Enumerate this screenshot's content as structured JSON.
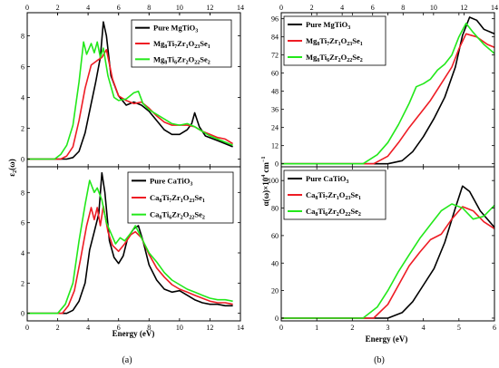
{
  "chart_data": [
    {
      "id": "a_top",
      "type": "line",
      "panel": "(a)",
      "xlabel": "",
      "ylabel": "ε2(ω)",
      "x_ticks": [
        0,
        2,
        4,
        6,
        8,
        10,
        12,
        14
      ],
      "y_ticks": [
        0,
        2,
        4,
        6,
        8
      ],
      "xlim": [
        0,
        14
      ],
      "ylim": [
        -0.5,
        9.5
      ],
      "top_axis_ticks": [
        0,
        2,
        4,
        6,
        8,
        10,
        12,
        14
      ],
      "legend_position": "top-right",
      "series": [
        {
          "name": "Pure MgTiO3",
          "legend_parts": [
            [
              "Pure MgTiO",
              ""
            ],
            [
              "3",
              "sub"
            ]
          ],
          "color": "#000000",
          "x": [
            0,
            2.6,
            3.0,
            3.4,
            3.8,
            4.2,
            4.5,
            4.8,
            5.0,
            5.2,
            5.5,
            6.0,
            6.5,
            7.0,
            7.5,
            8.0,
            8.5,
            9.0,
            9.5,
            10.0,
            10.5,
            10.8,
            11.0,
            11.3,
            11.7,
            12.5,
            13.5
          ],
          "y": [
            0,
            0,
            0.1,
            0.5,
            1.7,
            3.6,
            5.0,
            6.6,
            8.9,
            8.0,
            5.4,
            4.1,
            3.5,
            3.7,
            3.5,
            3.1,
            2.5,
            1.9,
            1.6,
            1.6,
            1.9,
            2.3,
            3.0,
            2.1,
            1.5,
            1.2,
            0.8
          ]
        },
        {
          "name": "Mg8Ti7Zr1O23Se1",
          "legend_parts": [
            [
              "Mg",
              ""
            ],
            [
              "8",
              "sub"
            ],
            [
              "Ti",
              ""
            ],
            [
              "7",
              "sub"
            ],
            [
              "Zr",
              ""
            ],
            [
              "1",
              "sub"
            ],
            [
              "O",
              ""
            ],
            [
              "23",
              "sub"
            ],
            [
              "Se",
              ""
            ],
            [
              "1",
              "sub"
            ]
          ],
          "color": "#ee1c24",
          "x": [
            0,
            2.2,
            2.6,
            3.0,
            3.4,
            3.8,
            4.2,
            4.6,
            4.9,
            5.2,
            5.6,
            6.0,
            6.5,
            7.0,
            7.5,
            8.0,
            8.5,
            9.0,
            9.5,
            10.0,
            10.5,
            11.0,
            11.5,
            12.0,
            12.5,
            13.0,
            13.5
          ],
          "y": [
            0,
            0,
            0.2,
            0.8,
            2.5,
            4.6,
            6.1,
            6.4,
            6.6,
            7.1,
            5.2,
            4.1,
            3.8,
            3.6,
            3.7,
            3.3,
            2.8,
            2.4,
            2.2,
            2.2,
            2.2,
            2.1,
            1.8,
            1.6,
            1.4,
            1.3,
            1.0
          ]
        },
        {
          "name": "Mg8Ti6Zr2O22Se2",
          "legend_parts": [
            [
              "Mg",
              ""
            ],
            [
              "8",
              "sub"
            ],
            [
              "Ti",
              ""
            ],
            [
              "6",
              "sub"
            ],
            [
              "Zr",
              ""
            ],
            [
              "2",
              "sub"
            ],
            [
              "O",
              ""
            ],
            [
              "22",
              "sub"
            ],
            [
              "Se",
              ""
            ],
            [
              "2",
              "sub"
            ]
          ],
          "color": "#22e81a",
          "x": [
            0,
            1.8,
            2.2,
            2.6,
            3.0,
            3.4,
            3.7,
            3.9,
            4.2,
            4.4,
            4.6,
            4.8,
            5.0,
            5.3,
            5.7,
            6.0,
            6.5,
            7.0,
            7.3,
            7.6,
            8.0,
            8.5,
            9.0,
            9.5,
            10.0,
            10.5,
            11.0,
            11.5,
            12.0,
            12.5,
            13.0,
            13.5
          ],
          "y": [
            0,
            0,
            0.3,
            0.9,
            2.2,
            5.0,
            7.6,
            6.8,
            7.5,
            6.9,
            7.6,
            6.6,
            7.2,
            5.4,
            4.0,
            3.8,
            3.9,
            4.3,
            4.4,
            3.6,
            3.2,
            2.9,
            2.6,
            2.3,
            2.2,
            2.3,
            2.1,
            1.8,
            1.5,
            1.3,
            1.1,
            0.9
          ]
        }
      ]
    },
    {
      "id": "a_bottom",
      "type": "line",
      "panel": "(a)",
      "xlabel": "Energy (eV)",
      "ylabel": "",
      "x_ticks": [
        0,
        2,
        4,
        6,
        8,
        10,
        12,
        14
      ],
      "y_ticks": [
        0,
        2,
        4,
        6,
        8
      ],
      "xlim": [
        0,
        14
      ],
      "ylim": [
        -0.5,
        9.7
      ],
      "legend_position": "top-right",
      "series": [
        {
          "name": "Pure CaTiO3",
          "legend_parts": [
            [
              "Pure CaTiO",
              ""
            ],
            [
              "3",
              "sub"
            ]
          ],
          "color": "#000000",
          "x": [
            0,
            2.6,
            3.0,
            3.4,
            3.8,
            4.1,
            4.4,
            4.7,
            4.9,
            5.1,
            5.4,
            5.7,
            6.0,
            6.3,
            6.6,
            7.0,
            7.3,
            7.6,
            8.0,
            8.5,
            9.0,
            9.5,
            10.0,
            10.5,
            11.0,
            11.5,
            12.0,
            12.5,
            13.0,
            13.5
          ],
          "y": [
            0,
            0,
            0.2,
            0.8,
            2.0,
            4.2,
            5.4,
            6.6,
            9.3,
            8.0,
            4.8,
            3.7,
            3.3,
            3.8,
            5.0,
            5.6,
            5.8,
            4.8,
            3.2,
            2.2,
            1.6,
            1.4,
            1.5,
            1.2,
            0.9,
            0.7,
            0.6,
            0.6,
            0.5,
            0.5
          ]
        },
        {
          "name": "Ca8Ti7Zr1O23Se1",
          "legend_parts": [
            [
              "Ca",
              ""
            ],
            [
              "8",
              "sub"
            ],
            [
              "Ti",
              ""
            ],
            [
              "7",
              "sub"
            ],
            [
              "Zr",
              ""
            ],
            [
              "1",
              "sub"
            ],
            [
              "O",
              ""
            ],
            [
              "23",
              "sub"
            ],
            [
              "Se",
              ""
            ],
            [
              "1",
              "sub"
            ]
          ],
          "color": "#ee1c24",
          "x": [
            0,
            2.3,
            2.7,
            3.1,
            3.5,
            3.9,
            4.2,
            4.4,
            4.6,
            4.8,
            5.0,
            5.3,
            5.6,
            6.0,
            6.4,
            6.8,
            7.1,
            7.5,
            8.0,
            8.5,
            9.0,
            9.5,
            10.0,
            10.5,
            11.0,
            11.5,
            12.0,
            12.5,
            13.0,
            13.5
          ],
          "y": [
            0,
            0,
            0.5,
            1.5,
            3.6,
            5.8,
            7.0,
            6.2,
            7.0,
            5.8,
            7.1,
            5.4,
            4.5,
            4.1,
            4.6,
            5.2,
            5.4,
            5.0,
            3.9,
            3.0,
            2.4,
            1.9,
            1.6,
            1.4,
            1.2,
            1.0,
            0.8,
            0.7,
            0.7,
            0.6
          ]
        },
        {
          "name": "Ca8Ti6Zr2O22Se2",
          "legend_parts": [
            [
              "Ca",
              ""
            ],
            [
              "8",
              "sub"
            ],
            [
              "Ti",
              ""
            ],
            [
              "6",
              "sub"
            ],
            [
              "Zr",
              ""
            ],
            [
              "2",
              "sub"
            ],
            [
              "O",
              ""
            ],
            [
              "22",
              "sub"
            ],
            [
              "Se",
              ""
            ],
            [
              "2",
              "sub"
            ]
          ],
          "color": "#22e81a",
          "x": [
            0,
            2.0,
            2.5,
            3.0,
            3.4,
            3.8,
            4.1,
            4.4,
            4.6,
            4.9,
            5.2,
            5.5,
            5.8,
            6.1,
            6.4,
            6.8,
            7.1,
            7.5,
            8.0,
            8.5,
            9.0,
            9.5,
            10.0,
            10.5,
            11.0,
            11.5,
            12.0,
            12.5,
            13.0,
            13.5
          ],
          "y": [
            0,
            0,
            0.6,
            2.0,
            4.8,
            7.2,
            8.8,
            8.0,
            8.3,
            7.5,
            6.0,
            5.3,
            4.6,
            5.0,
            4.8,
            5.3,
            5.8,
            5.0,
            4.0,
            3.4,
            2.7,
            2.2,
            1.9,
            1.6,
            1.4,
            1.2,
            1.0,
            0.9,
            0.9,
            0.8
          ]
        }
      ]
    },
    {
      "id": "b_top",
      "type": "line",
      "panel": "(b)",
      "xlabel": "",
      "ylabel": "α(ω)×10^4 cm^−1",
      "x_ticks": [
        0,
        1,
        2,
        3,
        4,
        5,
        6
      ],
      "y_ticks": [
        0,
        12,
        24,
        36,
        48,
        60,
        72,
        84,
        96
      ],
      "xlim": [
        0,
        6
      ],
      "ylim": [
        -2,
        100
      ],
      "top_axis_ticks": [
        0,
        2,
        4,
        6,
        8,
        10,
        12,
        14
      ],
      "legend_position": "top-left",
      "series": [
        {
          "name": "Pure MgTiO3",
          "legend_parts": [
            [
              "Pure MgTiO",
              ""
            ],
            [
              "3",
              "sub"
            ]
          ],
          "color": "#000000",
          "x": [
            0,
            3.0,
            3.4,
            3.7,
            4.0,
            4.3,
            4.6,
            4.9,
            5.1,
            5.3,
            5.5,
            5.7,
            6.0
          ],
          "y": [
            0,
            0,
            2,
            8,
            18,
            30,
            44,
            64,
            85,
            97,
            95,
            89,
            86
          ]
        },
        {
          "name": "Mg8Ti7Zr1O23Se1",
          "legend_parts": [
            [
              "Mg",
              ""
            ],
            [
              "8",
              "sub"
            ],
            [
              "Ti",
              ""
            ],
            [
              "7",
              "sub"
            ],
            [
              "Zr",
              ""
            ],
            [
              "1",
              "sub"
            ],
            [
              "O",
              ""
            ],
            [
              "23",
              "sub"
            ],
            [
              "Se",
              ""
            ],
            [
              "1",
              "sub"
            ]
          ],
          "color": "#ee1c24",
          "x": [
            0,
            2.6,
            3.0,
            3.3,
            3.6,
            3.9,
            4.2,
            4.5,
            4.8,
            5.0,
            5.2,
            5.5,
            5.8,
            6.0
          ],
          "y": [
            0,
            0,
            5,
            14,
            24,
            33,
            42,
            53,
            64,
            76,
            86,
            84,
            79,
            77
          ]
        },
        {
          "name": "Mg8Ti6Zr2O22Se2",
          "legend_parts": [
            [
              "Mg",
              ""
            ],
            [
              "8",
              "sub"
            ],
            [
              "Ti",
              ""
            ],
            [
              "6",
              "sub"
            ],
            [
              "Zr",
              ""
            ],
            [
              "2",
              "sub"
            ],
            [
              "O",
              ""
            ],
            [
              "22",
              "sub"
            ],
            [
              "Se",
              ""
            ],
            [
              "2",
              "sub"
            ]
          ],
          "color": "#22e81a",
          "x": [
            0,
            2.3,
            2.7,
            3.0,
            3.3,
            3.6,
            3.8,
            4.0,
            4.2,
            4.4,
            4.6,
            4.8,
            5.0,
            5.2,
            5.4,
            5.7,
            6.0
          ],
          "y": [
            0,
            0,
            6,
            14,
            26,
            40,
            51,
            53,
            56,
            62,
            66,
            72,
            84,
            93,
            87,
            79,
            73
          ]
        }
      ]
    },
    {
      "id": "b_bottom",
      "type": "line",
      "panel": "(b)",
      "xlabel": "Energy (eV)",
      "ylabel": "",
      "x_ticks": [
        0,
        1,
        2,
        3,
        4,
        5,
        6
      ],
      "y_ticks": [
        0,
        20,
        40,
        60,
        80,
        100
      ],
      "xlim": [
        0,
        6
      ],
      "ylim": [
        -2,
        110
      ],
      "legend_position": "top-left",
      "series": [
        {
          "name": "Pure CaTiO3",
          "legend_parts": [
            [
              "Pure CaTiO",
              ""
            ],
            [
              "3",
              "sub"
            ]
          ],
          "color": "#000000",
          "x": [
            0,
            3.0,
            3.4,
            3.7,
            4.0,
            4.3,
            4.6,
            4.9,
            5.1,
            5.3,
            5.6,
            6.0
          ],
          "y": [
            0,
            0,
            4,
            12,
            24,
            36,
            55,
            80,
            96,
            92,
            78,
            66
          ]
        },
        {
          "name": "Ca8Ti7Zr1O23Se1",
          "legend_parts": [
            [
              "Ca",
              ""
            ],
            [
              "8",
              "sub"
            ],
            [
              "Ti",
              ""
            ],
            [
              "7",
              "sub"
            ],
            [
              "Zr",
              ""
            ],
            [
              "1",
              "sub"
            ],
            [
              "O",
              ""
            ],
            [
              "23",
              "sub"
            ],
            [
              "Se",
              ""
            ],
            [
              "1",
              "sub"
            ]
          ],
          "color": "#ee1c24",
          "x": [
            0,
            2.6,
            3.0,
            3.3,
            3.6,
            3.9,
            4.2,
            4.5,
            4.8,
            5.1,
            5.4,
            5.7,
            6.0
          ],
          "y": [
            0,
            0,
            10,
            24,
            38,
            48,
            57,
            61,
            72,
            81,
            78,
            70,
            65
          ]
        },
        {
          "name": "Ca8Ti6Zr2O22Se2",
          "legend_parts": [
            [
              "Ca",
              ""
            ],
            [
              "8",
              "sub"
            ],
            [
              "Ti",
              ""
            ],
            [
              "6",
              "sub"
            ],
            [
              "Zr",
              ""
            ],
            [
              "2",
              "sub"
            ],
            [
              "O",
              ""
            ],
            [
              "22",
              "sub"
            ],
            [
              "Se",
              ""
            ],
            [
              "2",
              "sub"
            ]
          ],
          "color": "#22e81a",
          "x": [
            0,
            2.3,
            2.7,
            3.0,
            3.3,
            3.6,
            3.9,
            4.2,
            4.5,
            4.8,
            5.1,
            5.4,
            5.7,
            6.0
          ],
          "y": [
            0,
            0,
            8,
            20,
            34,
            46,
            58,
            68,
            78,
            83,
            80,
            72,
            74,
            82
          ]
        }
      ]
    }
  ],
  "captions": {
    "left": "(a)",
    "right": "(b)"
  },
  "axis_labels": {
    "energy": "Energy (eV)"
  }
}
